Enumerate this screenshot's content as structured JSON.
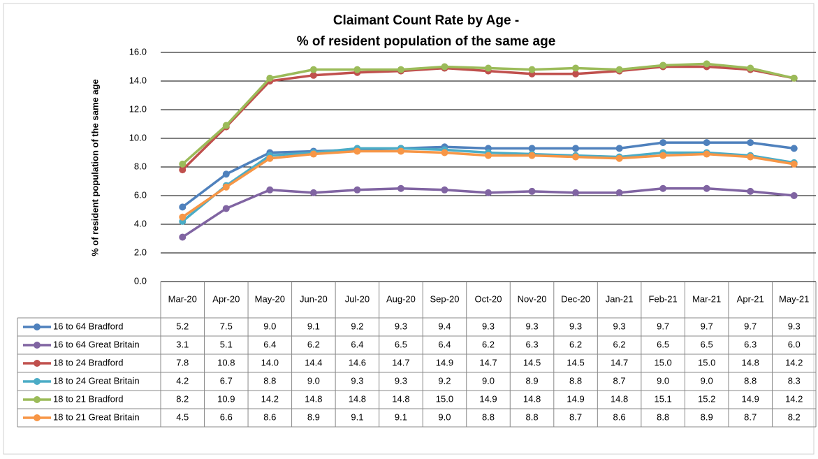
{
  "chart_data": {
    "type": "line",
    "title": [
      "Claimant Count Rate by Age -",
      "% of resident population of the same age"
    ],
    "y_label": "% of  resident population of the same age",
    "categories": [
      "Mar-20",
      "Apr-20",
      "May-20",
      "Jun-20",
      "Jul-20",
      "Aug-20",
      "Sep-20",
      "Oct-20",
      "Nov-20",
      "Dec-20",
      "Jan-21",
      "Feb-21",
      "Mar-21",
      "Apr-21",
      "May-21"
    ],
    "ylim": [
      0,
      16
    ],
    "yticks": [
      {
        "value": 0,
        "label": "0.0"
      },
      {
        "value": 2,
        "label": "2.0"
      },
      {
        "value": 4,
        "label": "4.0"
      },
      {
        "value": 6,
        "label": "6.0"
      },
      {
        "value": 8,
        "label": "8.0"
      },
      {
        "value": 10,
        "label": "10.0"
      },
      {
        "value": 12,
        "label": "12.0"
      },
      {
        "value": 14,
        "label": "14.0"
      },
      {
        "value": 16,
        "label": "16.0"
      }
    ],
    "grid": true,
    "series": [
      {
        "name": "16 to 64 Bradford",
        "color": "#4f81bd",
        "values": [
          5.2,
          7.5,
          9.0,
          9.1,
          9.2,
          9.3,
          9.4,
          9.3,
          9.3,
          9.3,
          9.3,
          9.7,
          9.7,
          9.7,
          9.3
        ],
        "value_labels": [
          "5.2",
          "7.5",
          "9.0",
          "9.1",
          "9.2",
          "9.3",
          "9.4",
          "9.3",
          "9.3",
          "9.3",
          "9.3",
          "9.7",
          "9.7",
          "9.7",
          "9.3"
        ]
      },
      {
        "name": "16 to 64 Great Britain",
        "color": "#8064a2",
        "values": [
          3.1,
          5.1,
          6.4,
          6.2,
          6.4,
          6.5,
          6.4,
          6.2,
          6.3,
          6.2,
          6.2,
          6.5,
          6.5,
          6.3,
          6.0
        ],
        "value_labels": [
          "3.1",
          "5.1",
          "6.4",
          "6.2",
          "6.4",
          "6.5",
          "6.4",
          "6.2",
          "6.3",
          "6.2",
          "6.2",
          "6.5",
          "6.5",
          "6.3",
          "6.0"
        ]
      },
      {
        "name": "18 to 24 Bradford",
        "color": "#c0504d",
        "values": [
          7.8,
          10.8,
          14.0,
          14.4,
          14.6,
          14.7,
          14.9,
          14.7,
          14.5,
          14.5,
          14.7,
          15.0,
          15.0,
          14.8,
          14.2
        ],
        "value_labels": [
          "7.8",
          "10.8",
          "14.0",
          "14.4",
          "14.6",
          "14.7",
          "14.9",
          "14.7",
          "14.5",
          "14.5",
          "14.7",
          "15.0",
          "15.0",
          "14.8",
          "14.2"
        ]
      },
      {
        "name": "18 to 24 Great Britain",
        "color": "#4bacc6",
        "values": [
          4.2,
          6.7,
          8.8,
          9.0,
          9.3,
          9.3,
          9.2,
          9.0,
          8.9,
          8.8,
          8.7,
          9.0,
          9.0,
          8.8,
          8.3
        ],
        "value_labels": [
          "4.2",
          "6.7",
          "8.8",
          "9.0",
          "9.3",
          "9.3",
          "9.2",
          "9.0",
          "8.9",
          "8.8",
          "8.7",
          "9.0",
          "9.0",
          "8.8",
          "8.3"
        ]
      },
      {
        "name": "18 to 21 Bradford",
        "color": "#9bbb59",
        "values": [
          8.2,
          10.9,
          14.2,
          14.8,
          14.8,
          14.8,
          15.0,
          14.9,
          14.8,
          14.9,
          14.8,
          15.1,
          15.2,
          14.9,
          14.2
        ],
        "value_labels": [
          "8.2",
          "10.9",
          "14.2",
          "14.8",
          "14.8",
          "14.8",
          "15.0",
          "14.9",
          "14.8",
          "14.9",
          "14.8",
          "15.1",
          "15.2",
          "14.9",
          "14.2"
        ]
      },
      {
        "name": "18 to 21 Great Britain",
        "color": "#f79646",
        "values": [
          4.5,
          6.6,
          8.6,
          8.9,
          9.1,
          9.1,
          9.0,
          8.8,
          8.8,
          8.7,
          8.6,
          8.8,
          8.9,
          8.7,
          8.2
        ],
        "value_labels": [
          "4.5",
          "6.6",
          "8.6",
          "8.9",
          "9.1",
          "9.1",
          "9.0",
          "8.8",
          "8.8",
          "8.7",
          "8.6",
          "8.8",
          "8.9",
          "8.7",
          "8.2"
        ]
      }
    ]
  }
}
